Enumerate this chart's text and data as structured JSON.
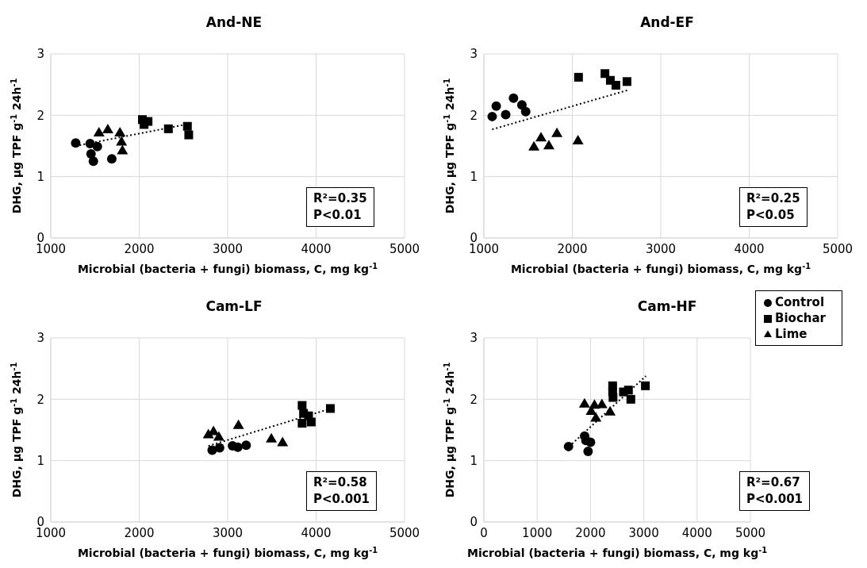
{
  "chart_data": [
    {
      "type": "scatter",
      "title": "And-NE",
      "xlabel": "Microbial (bacteria + fungi) biomass, C, mg kg$^{-1}$",
      "ylabel": "DHG, µg TPF g$^{-1}$ 24h$^{-1}$",
      "xlim": [
        1000,
        5000
      ],
      "xticks": [
        1000,
        2000,
        3000,
        4000,
        5000
      ],
      "ylim": [
        0,
        3
      ],
      "yticks": [
        0,
        1,
        2,
        3
      ],
      "grid": true,
      "legend": false,
      "annotations": [
        "R²=0.35",
        "P<0.01"
      ],
      "series": [
        {
          "color": "#000000",
          "marker": "circle",
          "x": [
            1282,
            1445,
            1527,
            1455,
            1482,
            1690
          ],
          "values": [
            1.55,
            1.54,
            1.49,
            1.37,
            1.25,
            1.29
          ]
        },
        {
          "color": "#000000",
          "marker": "square",
          "x": [
            2036,
            2100,
            2055,
            2330,
            2545,
            2560
          ],
          "values": [
            1.93,
            1.9,
            1.85,
            1.78,
            1.82,
            1.68
          ]
        },
        {
          "color": "#000000",
          "marker": "triangle",
          "x": [
            1545,
            1645,
            1782,
            1800,
            1810
          ],
          "values": [
            1.72,
            1.77,
            1.72,
            1.57,
            1.43
          ]
        },
        {
          "type": "line",
          "color": "#000000",
          "marker": "none",
          "line_style": "dotted",
          "x": [
            1282,
            2560
          ],
          "values": [
            1.5,
            1.86
          ]
        }
      ]
    },
    {
      "type": "scatter",
      "title": "And-EF",
      "xlabel": "Microbial (bacteria + fungi) biomass, C, mg kg$^{-1}$",
      "ylabel": "DHG, µg TPF g$^{-1}$ 24h$^{-1}$",
      "xlim": [
        1000,
        5000
      ],
      "xticks": [
        1000,
        2000,
        3000,
        4000,
        5000
      ],
      "ylim": [
        0,
        3
      ],
      "yticks": [
        0,
        1,
        2,
        3
      ],
      "grid": true,
      "legend": false,
      "annotations": [
        "R²=0.25",
        "P<0.05"
      ],
      "series": [
        {
          "color": "#000000",
          "marker": "circle",
          "x": [
            1094,
            1140,
            1247,
            1335,
            1430,
            1473
          ],
          "values": [
            1.98,
            2.15,
            2.01,
            2.28,
            2.17,
            2.06
          ]
        },
        {
          "color": "#000000",
          "marker": "square",
          "x": [
            2070,
            2369,
            2430,
            2493,
            2618
          ],
          "values": [
            2.62,
            2.68,
            2.57,
            2.49,
            2.55
          ]
        },
        {
          "color": "#000000",
          "marker": "triangle",
          "x": [
            1566,
            1646,
            1735,
            1826,
            2064
          ],
          "values": [
            1.49,
            1.64,
            1.51,
            1.71,
            1.59
          ]
        },
        {
          "type": "line",
          "color": "#000000",
          "marker": "none",
          "line_style": "dotted",
          "x": [
            1094,
            2627
          ],
          "values": [
            1.77,
            2.41
          ]
        }
      ]
    },
    {
      "type": "scatter",
      "title": "Cam-LF",
      "xlabel": "Microbial (bacteria + fungi) biomass, C, mg kg$^{-1}$",
      "ylabel": "DHG, µg TPF g$^{-1}$ 24h$^{-1}$",
      "xlim": [
        1000,
        5000
      ],
      "xticks": [
        1000,
        2000,
        3000,
        4000,
        5000
      ],
      "ylim": [
        0,
        3
      ],
      "yticks": [
        0,
        1,
        2,
        3
      ],
      "grid": true,
      "legend": false,
      "annotations": [
        "R²=0.58",
        "P<0.001"
      ],
      "series": [
        {
          "color": "#000000",
          "marker": "circle",
          "x": [
            2825,
            2909,
            3055,
            3115,
            3209
          ],
          "values": [
            1.17,
            1.21,
            1.24,
            1.22,
            1.25
          ]
        },
        {
          "color": "#000000",
          "marker": "square",
          "x": [
            3842,
            3858,
            3915,
            3842,
            3945,
            4161
          ],
          "values": [
            1.9,
            1.77,
            1.73,
            1.61,
            1.63,
            1.85
          ]
        },
        {
          "color": "#000000",
          "marker": "triangle",
          "x": [
            2782,
            2840,
            2900,
            3122,
            3494,
            3621
          ],
          "values": [
            1.43,
            1.48,
            1.39,
            1.58,
            1.36,
            1.3
          ]
        },
        {
          "type": "line",
          "color": "#000000",
          "marker": "none",
          "line_style": "dotted",
          "x": [
            2782,
            4170
          ],
          "values": [
            1.24,
            1.85
          ]
        }
      ]
    },
    {
      "type": "scatter",
      "title": "Cam-HF",
      "xlabel": "Microbial (bacteria + fungi) biomass, C, mg kg$^{-1}$",
      "ylabel": "DHG, µg TPF g$^{-1}$ 24h$^{-1}$",
      "xlim": [
        0,
        5000
      ],
      "xticks": [
        0,
        1000,
        2000,
        3000,
        4000,
        5000
      ],
      "ylim": [
        0,
        3
      ],
      "yticks": [
        0,
        1,
        2,
        3
      ],
      "grid": true,
      "legend": "top right",
      "annotations": [
        "R²=0.67",
        "P<0.001"
      ],
      "series": [
        {
          "name": "Control",
          "color": "#000000",
          "marker": "circle",
          "x": [
            1588,
            1890,
            1915,
            2000,
            1955
          ],
          "values": [
            1.23,
            1.4,
            1.33,
            1.3,
            1.15
          ]
        },
        {
          "name": "Biochar",
          "color": "#000000",
          "marker": "square",
          "x": [
            2416,
            2416,
            2423,
            2618,
            2712,
            2757,
            3030
          ],
          "values": [
            2.22,
            2.12,
            2.03,
            2.12,
            2.15,
            2.0,
            2.22
          ]
        },
        {
          "name": "Lime",
          "color": "#000000",
          "marker": "triangle",
          "x": [
            1888,
            2075,
            2214,
            2014,
            2101,
            2367
          ],
          "values": [
            1.93,
            1.91,
            1.92,
            1.81,
            1.7,
            1.8
          ]
        },
        {
          "type": "line",
          "color": "#000000",
          "marker": "none",
          "line_style": "dotted",
          "x": [
            1600,
            3040
          ],
          "values": [
            1.23,
            2.38
          ]
        }
      ]
    }
  ]
}
